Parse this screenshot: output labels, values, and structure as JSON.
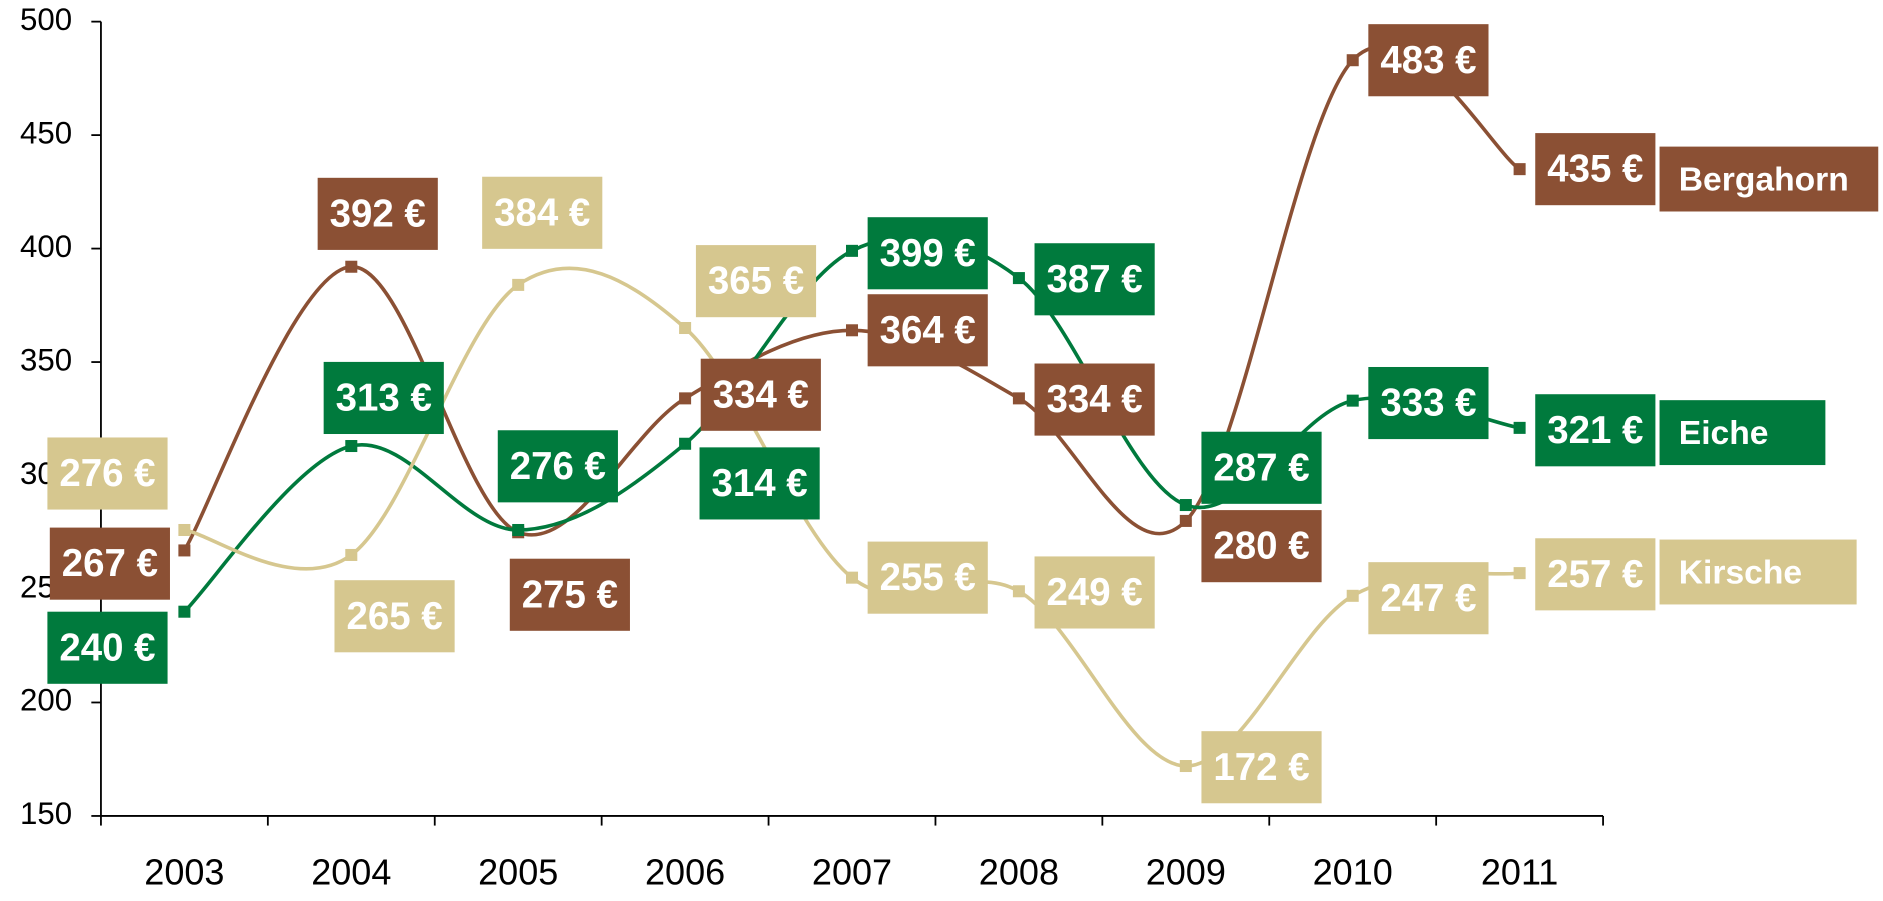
{
  "chart_data": {
    "type": "line",
    "categories": [
      "2003",
      "2004",
      "2005",
      "2006",
      "2007",
      "2008",
      "2009",
      "2010",
      "2011"
    ],
    "ylim": [
      150,
      500
    ],
    "yticks": [
      150,
      200,
      250,
      300,
      350,
      400,
      450,
      500
    ],
    "grid": false,
    "series": [
      {
        "name": "Bergahorn",
        "color": "#8b5034",
        "values": [
          267,
          392,
          275,
          334,
          364,
          334,
          280,
          483,
          435
        ],
        "value_labels": [
          "267 €",
          "392 €",
          "275 €",
          "334 €",
          "364 €",
          "334 €",
          "280 €",
          "483 €",
          "435 €"
        ]
      },
      {
        "name": "Eiche",
        "color": "#007a3d",
        "values": [
          240,
          313,
          276,
          314,
          399,
          387,
          287,
          333,
          321
        ],
        "value_labels": [
          "240 €",
          "313 €",
          "276 €",
          "314 €",
          "399 €",
          "387 €",
          "287 €",
          "333 €",
          "321 €"
        ]
      },
      {
        "name": "Kirsche",
        "color": "#d6c78f",
        "values": [
          276,
          265,
          384,
          365,
          255,
          249,
          172,
          247,
          257
        ],
        "value_labels": [
          "276 €",
          "265 €",
          "384 €",
          "365 €",
          "255 €",
          "249 €",
          "172 €",
          "247 €",
          "257 €"
        ]
      }
    ]
  }
}
